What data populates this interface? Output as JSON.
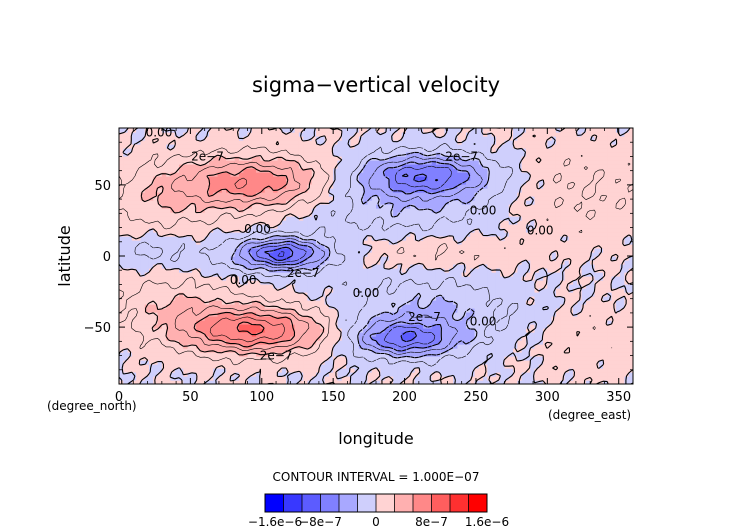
{
  "chart_data": {
    "type": "heatmap",
    "title": "sigma−vertical velocity",
    "xlabel": "longitude",
    "ylabel": "latitude",
    "x_unit": "(degree_east)",
    "y_unit": "(degree_north)",
    "xlim": [
      0,
      360
    ],
    "ylim": [
      -90,
      90
    ],
    "xticks": [
      0,
      50,
      100,
      150,
      200,
      250,
      300,
      350
    ],
    "yticks": [
      -50,
      0,
      50
    ],
    "contour_interval_text": "CONTOUR INTERVAL = 1.000E−07",
    "contour_labels": [
      {
        "text": "0.00",
        "lon": 28,
        "lat": 87
      },
      {
        "text": "2e−7",
        "lon": 62,
        "lat": 70
      },
      {
        "text": "2e−7",
        "lon": 240,
        "lat": 70
      },
      {
        "text": "0.00",
        "lon": 255,
        "lat": 32
      },
      {
        "text": "0.00",
        "lon": 295,
        "lat": 18
      },
      {
        "text": "0.00",
        "lon": 97,
        "lat": 19
      },
      {
        "text": "2e−7",
        "lon": 129,
        "lat": -12
      },
      {
        "text": "0.00",
        "lon": 87,
        "lat": -17
      },
      {
        "text": "0.00",
        "lon": 173,
        "lat": -26
      },
      {
        "text": "2e−7",
        "lon": 214,
        "lat": -43
      },
      {
        "text": "0.00",
        "lon": 255,
        "lat": -46
      },
      {
        "text": "2e−7",
        "lon": 110,
        "lat": -70
      }
    ],
    "colorbar": {
      "tick_labels": [
        "−1.6e−6",
        "−8e−7",
        "0",
        "8e−7",
        "1.6e−6"
      ],
      "colors": [
        "#0000ff",
        "#3838ff",
        "#5c5cff",
        "#8080ff",
        "#a8a8ff",
        "#cfcffc",
        "#ffd3d3",
        "#ffb0b0",
        "#ff8888",
        "#ff5e5e",
        "#ff3030",
        "#ff0000"
      ]
    },
    "features": [
      {
        "lon": 95,
        "lat": 52,
        "sx": 55,
        "sy": 18,
        "amp": 5
      },
      {
        "lon": 30,
        "lat": 38,
        "sx": 45,
        "sy": 25,
        "amp": 1.5
      },
      {
        "lon": 215,
        "lat": 57,
        "sx": 45,
        "sy": 14,
        "amp": -5
      },
      {
        "lon": 200,
        "lat": 40,
        "sx": 70,
        "sy": 25,
        "amp": -2
      },
      {
        "lon": 115,
        "lat": 2,
        "sx": 28,
        "sy": 10,
        "amp": -5.5
      },
      {
        "lon": 100,
        "lat": 0,
        "sx": 60,
        "sy": 14,
        "amp": -1.5
      },
      {
        "lon": 215,
        "lat": 3,
        "sx": 60,
        "sy": 12,
        "amp": 1.2
      },
      {
        "lon": 95,
        "lat": -52,
        "sx": 50,
        "sy": 16,
        "amp": 6
      },
      {
        "lon": 40,
        "lat": -35,
        "sx": 45,
        "sy": 22,
        "amp": 1.8
      },
      {
        "lon": 200,
        "lat": -58,
        "sx": 35,
        "sy": 12,
        "amp": -5
      },
      {
        "lon": 215,
        "lat": -40,
        "sx": 60,
        "sy": 25,
        "amp": -2.2
      },
      {
        "lon": 320,
        "lat": 45,
        "sx": 60,
        "sy": 35,
        "amp": 1
      },
      {
        "lon": 330,
        "lat": -60,
        "sx": 40,
        "sy": 25,
        "amp": 0.6
      },
      {
        "lon": 20,
        "lat": 5,
        "sx": 25,
        "sy": 12,
        "amp": -1.2
      }
    ]
  }
}
